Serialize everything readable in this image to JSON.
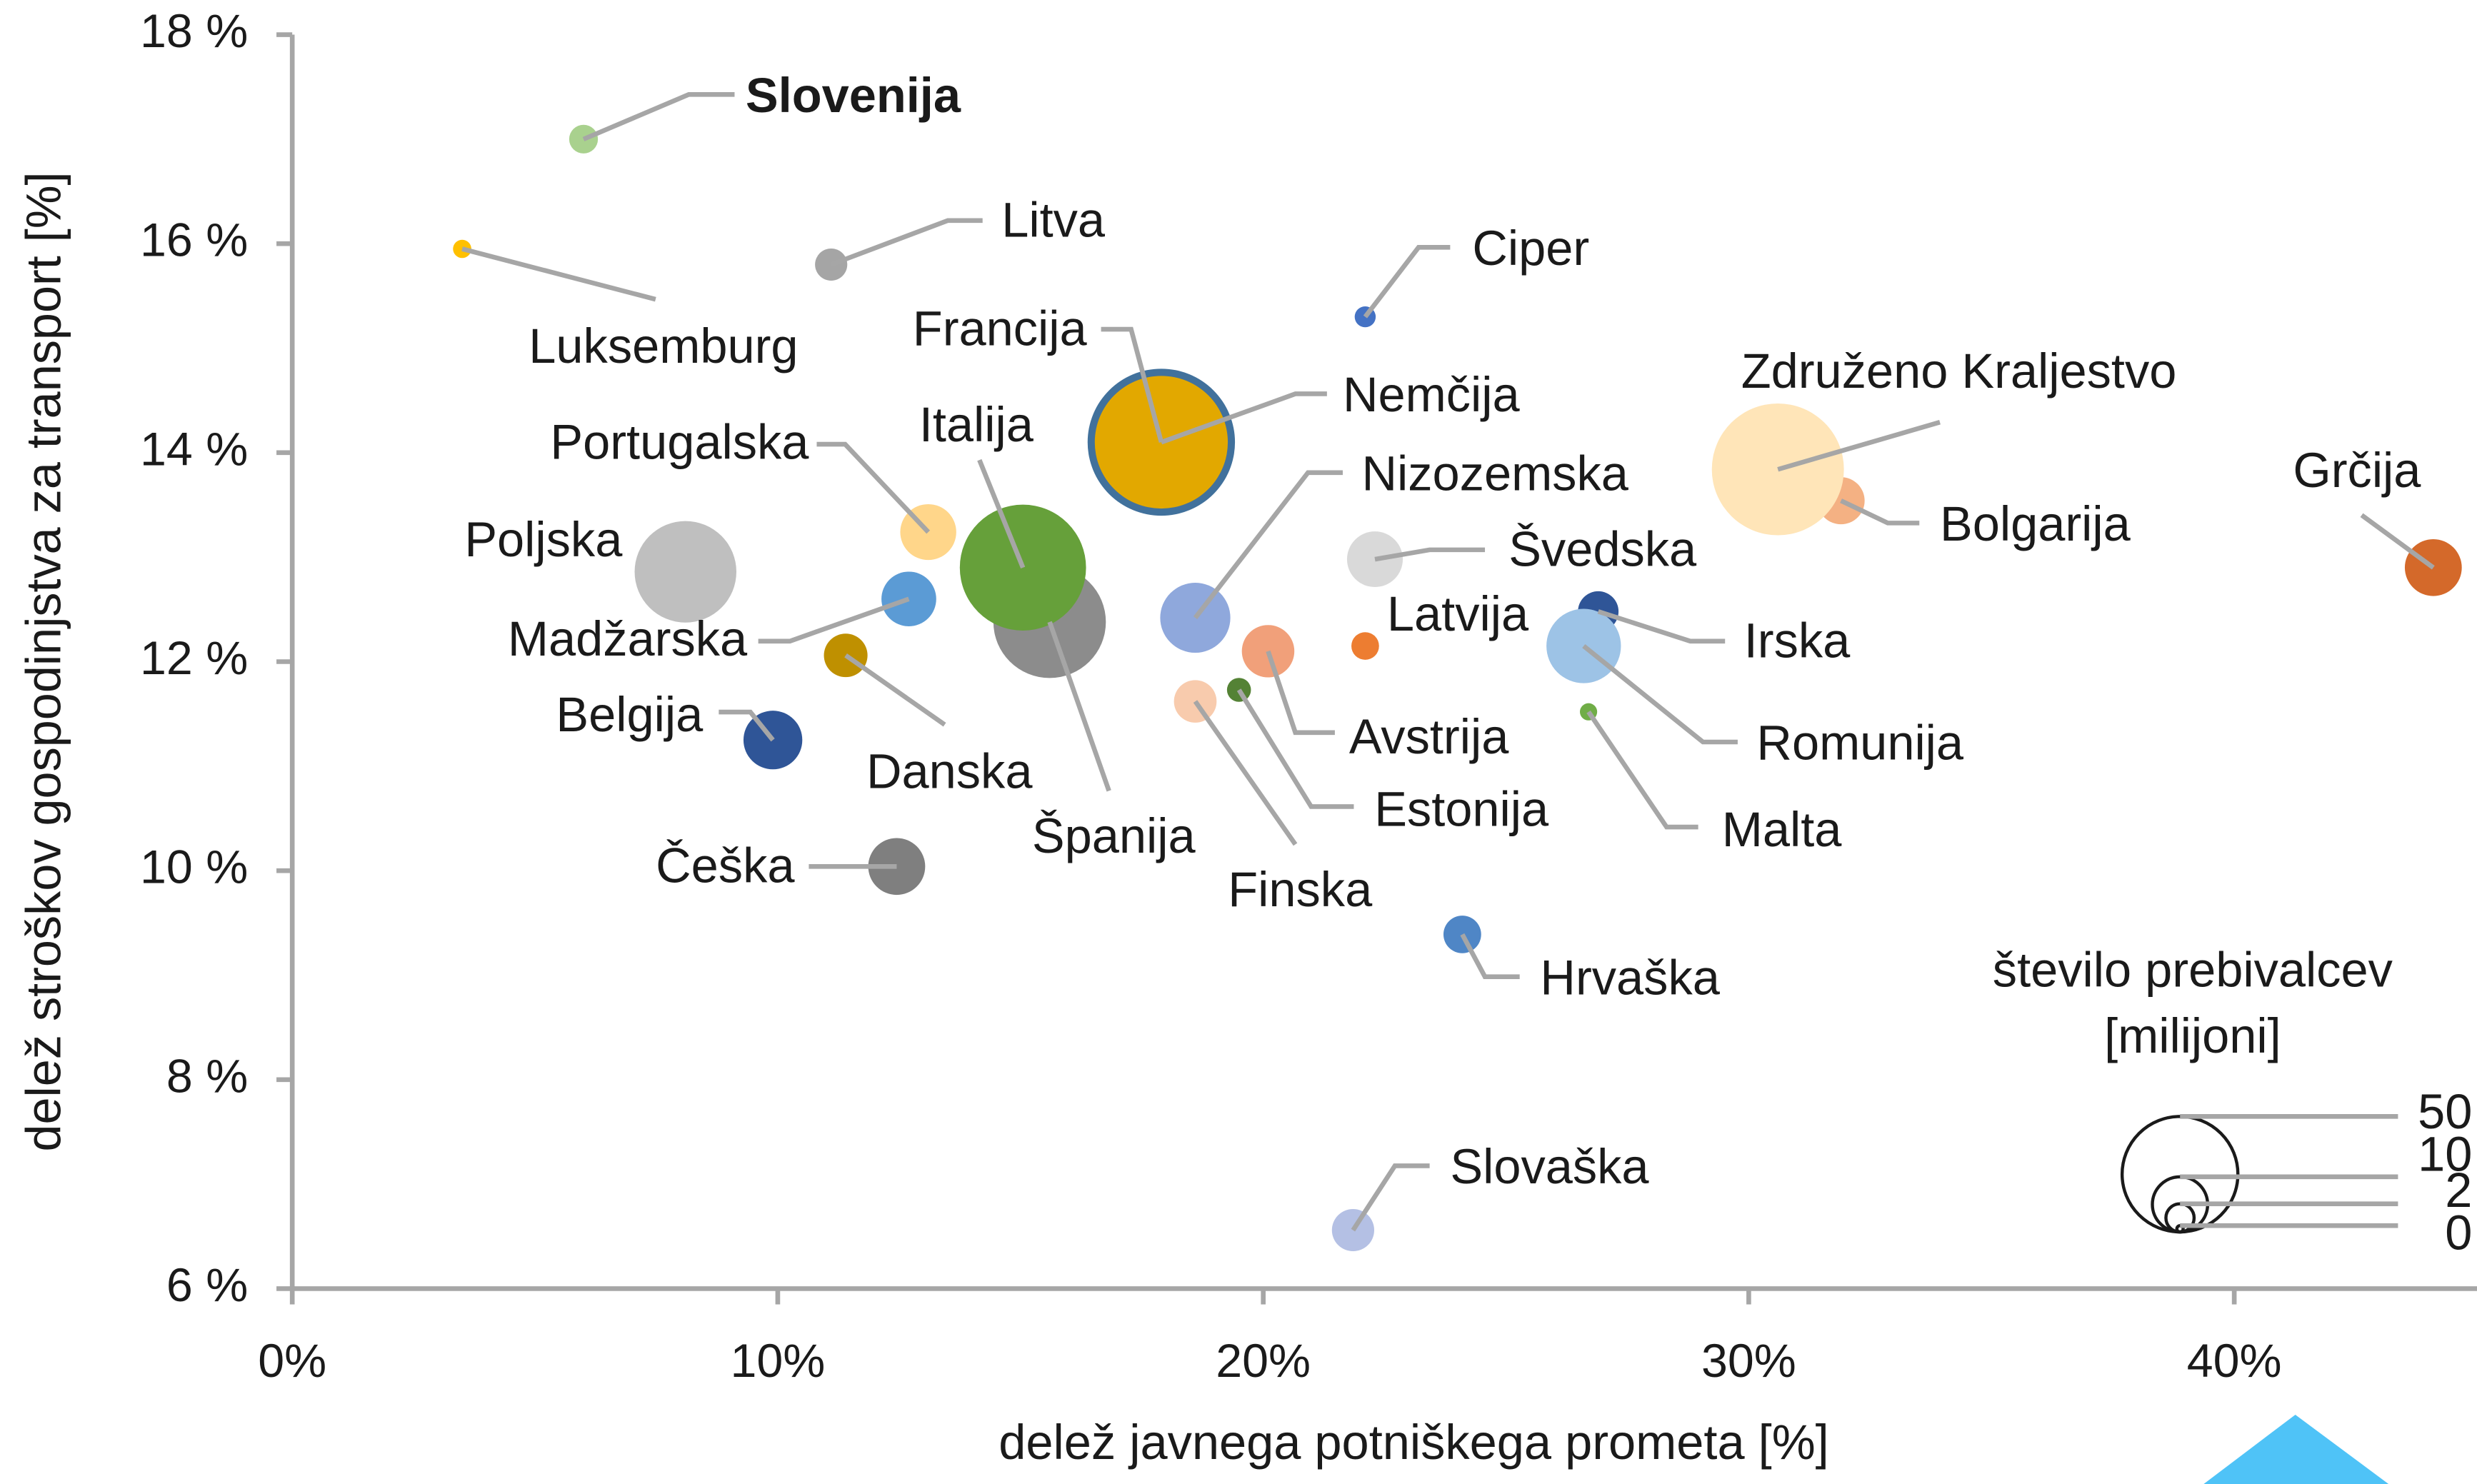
{
  "chart_data": {
    "type": "bubble",
    "x_label": "delež javnega potniškega prometa [%]",
    "y_label": "delež stroškov gospodinjstva za transport [%]",
    "xlim": [
      0,
      45
    ],
    "xticks": [
      {
        "value": 0,
        "label": "0%"
      },
      {
        "value": 10,
        "label": "10%"
      },
      {
        "value": 20,
        "label": "20%"
      },
      {
        "value": 30,
        "label": "30%"
      },
      {
        "value": 40,
        "label": "40%"
      }
    ],
    "ylim": [
      6,
      18
    ],
    "yticks": [
      {
        "value": 6,
        "label": "6 %"
      },
      {
        "value": 8,
        "label": "8 %"
      },
      {
        "value": 10,
        "label": "10 %"
      },
      {
        "value": 12,
        "label": "12 %"
      },
      {
        "value": 14,
        "label": "14 %"
      },
      {
        "value": 16,
        "label": "16 %"
      },
      {
        "value": 18,
        "label": "18 %"
      }
    ],
    "points": [
      {
        "name": "Slovenija",
        "x": 6.0,
        "y": 17.0,
        "size": 2.1,
        "color": "#a9d18e",
        "bold": true
      },
      {
        "name": "Luksemburg",
        "x": 3.5,
        "y": 15.95,
        "size": 0.6,
        "color": "#ffc000"
      },
      {
        "name": "Litva",
        "x": 11.1,
        "y": 15.8,
        "size": 2.8,
        "color": "#a5a5a5"
      },
      {
        "name": "Ciper",
        "x": 22.1,
        "y": 15.3,
        "size": 0.9,
        "color": "#4472c4"
      },
      {
        "name": "Nemčija",
        "x": 17.9,
        "y": 14.1,
        "size": 83,
        "color": "#41719c"
      },
      {
        "name": "Francija",
        "x": 17.9,
        "y": 14.1,
        "size": 67,
        "color": "#e2a800"
      },
      {
        "name": "Bolgarija",
        "x": 31.9,
        "y": 13.54,
        "size": 7,
        "color": "#f4b183"
      },
      {
        "name": "Združeno Kraljestvo",
        "x": 30.6,
        "y": 13.84,
        "size": 66,
        "color": "#ffe5b8"
      },
      {
        "name": "Grčija",
        "x": 44.1,
        "y": 12.9,
        "size": 10.7,
        "color": "#d4692a"
      },
      {
        "name": "Portugalska",
        "x": 13.1,
        "y": 13.24,
        "size": 10.3,
        "color": "#ffd68a"
      },
      {
        "name": "Španija",
        "x": 15.6,
        "y": 12.38,
        "size": 47,
        "color": "#8c8c8c"
      },
      {
        "name": "Italija",
        "x": 15.05,
        "y": 12.9,
        "size": 60,
        "color": "#66a03a"
      },
      {
        "name": "Poljska",
        "x": 8.1,
        "y": 12.86,
        "size": 38,
        "color": "#bfbfbf"
      },
      {
        "name": "Madžarska",
        "x": 12.7,
        "y": 12.6,
        "size": 9.8,
        "color": "#5b9bd5"
      },
      {
        "name": "Danska",
        "x": 11.4,
        "y": 12.06,
        "size": 5.8,
        "color": "#bf9000"
      },
      {
        "name": "Belgija",
        "x": 9.9,
        "y": 11.25,
        "size": 11.5,
        "color": "#2f5597"
      },
      {
        "name": "Češka",
        "x": 12.45,
        "y": 10.04,
        "size": 10.7,
        "color": "#7f7f7f"
      },
      {
        "name": "Nizozemska",
        "x": 18.6,
        "y": 12.42,
        "size": 17,
        "color": "#8fa8dc"
      },
      {
        "name": "Švedska",
        "x": 22.3,
        "y": 12.98,
        "size": 10.2,
        "color": "#d9d9d9"
      },
      {
        "name": "Latvija",
        "x": 22.1,
        "y": 12.15,
        "size": 1.9,
        "color": "#ed7d31"
      },
      {
        "name": "Avstrija",
        "x": 20.1,
        "y": 12.1,
        "size": 8.9,
        "color": "#f1a07a"
      },
      {
        "name": "Finska",
        "x": 18.6,
        "y": 11.62,
        "size": 5.5,
        "color": "#f8cbad"
      },
      {
        "name": "Estonija",
        "x": 19.5,
        "y": 11.73,
        "size": 1.3,
        "color": "#548235"
      },
      {
        "name": "Irska",
        "x": 26.9,
        "y": 12.48,
        "size": 4.9,
        "color": "#2f5597"
      },
      {
        "name": "Romunija",
        "x": 26.6,
        "y": 12.15,
        "size": 19.4,
        "color": "#9dc3e6"
      },
      {
        "name": "Malta",
        "x": 26.7,
        "y": 11.52,
        "size": 0.5,
        "color": "#70ad47"
      },
      {
        "name": "Hrvaška",
        "x": 24.1,
        "y": 9.39,
        "size": 4.1,
        "color": "#4f86c6"
      },
      {
        "name": "Slovaška",
        "x": 21.85,
        "y": 6.56,
        "size": 5.4,
        "color": "#b4c0e4"
      }
    ],
    "size_legend": {
      "title": [
        "število prebivalcev",
        "[milijoni]"
      ],
      "values": [
        50,
        10,
        2,
        0
      ]
    }
  }
}
